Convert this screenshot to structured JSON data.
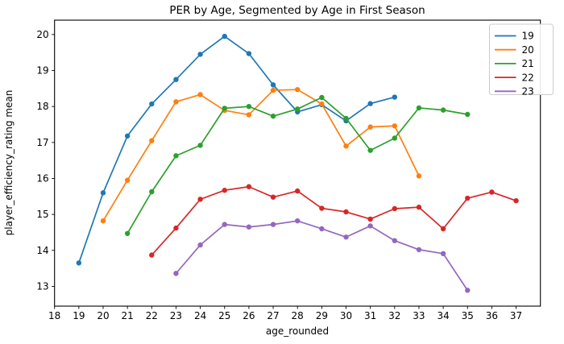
{
  "title": "PER by Age, Segmented by Age in First Season",
  "chart_data": {
    "type": "line",
    "title": "PER by Age, Segmented by Age in First Season",
    "xlabel": "age_rounded",
    "ylabel": "player_efficiency_rating mean",
    "xlim": [
      18,
      38
    ],
    "ylim": [
      12.45,
      20.4
    ],
    "xticks": [
      18,
      19,
      20,
      21,
      22,
      23,
      24,
      25,
      26,
      27,
      28,
      29,
      30,
      31,
      32,
      33,
      34,
      35,
      36,
      37
    ],
    "yticks": [
      13,
      14,
      15,
      16,
      17,
      18,
      19,
      20
    ],
    "grid": false,
    "marker": "circle",
    "legend": {
      "position": "upper right",
      "entries": [
        "19",
        "20",
        "21",
        "22",
        "23"
      ]
    },
    "series": [
      {
        "name": "19",
        "color": "#1f77b4",
        "x": [
          19,
          20,
          21,
          22,
          23,
          24,
          25,
          26,
          27,
          28,
          29,
          30,
          31,
          32
        ],
        "y": [
          13.65,
          15.6,
          17.18,
          18.07,
          18.75,
          19.45,
          19.95,
          19.47,
          18.6,
          17.85,
          18.05,
          17.6,
          18.08,
          18.26
        ]
      },
      {
        "name": "20",
        "color": "#ff7f0e",
        "x": [
          20,
          21,
          22,
          23,
          24,
          25,
          26,
          27,
          28,
          29,
          30,
          31,
          32,
          33
        ],
        "y": [
          14.82,
          15.95,
          17.05,
          18.13,
          18.33,
          17.89,
          17.77,
          18.45,
          18.47,
          18.07,
          16.9,
          17.43,
          17.46,
          16.07
        ]
      },
      {
        "name": "21",
        "color": "#2ca02c",
        "x": [
          21,
          22,
          23,
          24,
          25,
          26,
          27,
          28,
          29,
          30,
          31,
          32,
          33,
          34,
          35
        ],
        "y": [
          14.47,
          15.63,
          16.63,
          16.92,
          17.95,
          18.0,
          17.73,
          17.93,
          18.25,
          17.67,
          16.78,
          17.12,
          17.96,
          17.9,
          17.78
        ]
      },
      {
        "name": "22",
        "color": "#d62728",
        "x": [
          22,
          23,
          24,
          25,
          26,
          27,
          28,
          29,
          30,
          31,
          32,
          33,
          34,
          35,
          36,
          37
        ],
        "y": [
          13.87,
          14.62,
          15.42,
          15.67,
          15.77,
          15.48,
          15.65,
          15.17,
          15.07,
          14.87,
          15.16,
          15.2,
          14.6,
          15.45,
          15.62,
          15.38
        ]
      },
      {
        "name": "23",
        "color": "#9467bd",
        "x": [
          23,
          24,
          25,
          26,
          27,
          28,
          29,
          30,
          31,
          32,
          33,
          34,
          35
        ],
        "y": [
          13.36,
          14.15,
          14.72,
          14.65,
          14.72,
          14.82,
          14.6,
          14.37,
          14.68,
          14.27,
          14.02,
          13.91,
          12.89
        ]
      }
    ]
  }
}
